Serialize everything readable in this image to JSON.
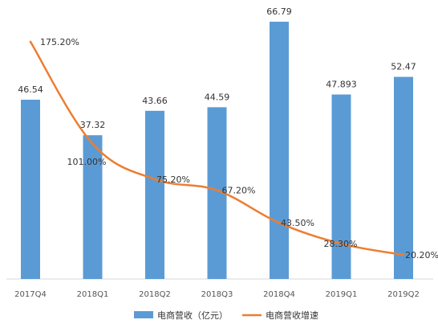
{
  "chart_data": {
    "type": "bar+line",
    "categories": [
      "2017Q4",
      "2018Q1",
      "2018Q2",
      "2018Q3",
      "2018Q4",
      "2019Q1",
      "2019Q2"
    ],
    "bar_series": {
      "name": "电商营收（亿元）",
      "values": [
        46.54,
        37.32,
        43.66,
        44.59,
        66.79,
        47.893,
        52.47
      ],
      "labels": [
        "46.54",
        "37.32",
        "43.66",
        "44.59",
        "66.79",
        "47.893",
        "52.47"
      ],
      "color": "#5b9bd5"
    },
    "line_series": {
      "name": "电商营收增速",
      "values": [
        175.2,
        101.0,
        75.2,
        67.2,
        43.5,
        28.3,
        20.2
      ],
      "labels": [
        "175.20%",
        "101.00%",
        "75.20%",
        "67.20%",
        "43.50%",
        "28.30%",
        "20.20%"
      ],
      "color": "#ed7d31"
    },
    "grid": false,
    "legend_position": "bottom"
  }
}
